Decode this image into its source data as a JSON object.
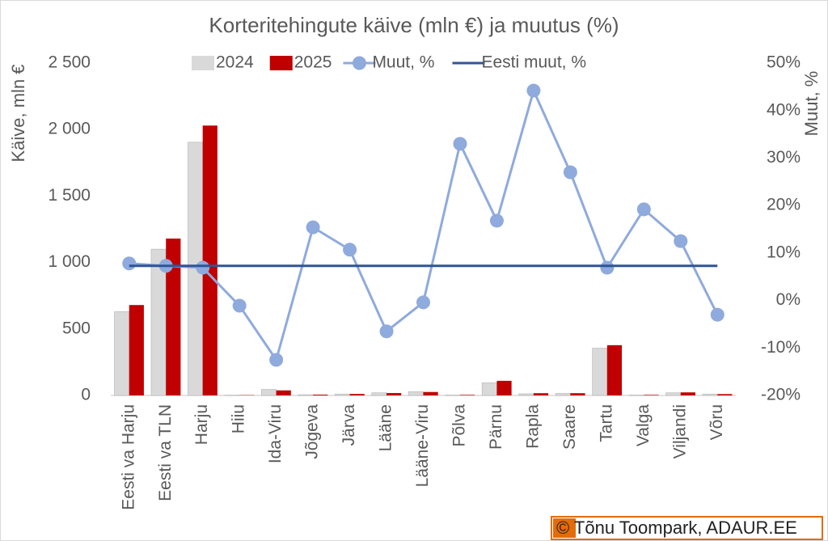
{
  "chart_data": {
    "type": "bar_line",
    "title": "Korteritehingute käive (mln €) ja muutus (%)",
    "ylabel": "Käive, mln €",
    "y2label": "Muut, %",
    "credit": "© Tõnu Toompark, ADAUR.EE",
    "categories": [
      "Eesti va Harju",
      "Eesti va TLN",
      "Harju",
      "Hiiu",
      "Ida-Viru",
      "Jõgeva",
      "Järva",
      "Lääne",
      "Lääne-Viru",
      "Põlva",
      "Pärnu",
      "Rapla",
      "Saare",
      "Tartu",
      "Valga",
      "Viljandi",
      "Võru"
    ],
    "series": [
      {
        "name": "2024",
        "kind": "bar",
        "color": "#d9d9d9",
        "values": [
          630,
          1100,
          1905,
          2,
          45,
          5,
          10,
          20,
          28,
          3,
          95,
          12,
          15,
          355,
          3,
          20,
          10
        ]
      },
      {
        "name": "2025",
        "kind": "bar",
        "color": "#c00000",
        "values": [
          680,
          1180,
          2030,
          2,
          38,
          6,
          11,
          18,
          26,
          4,
          110,
          17,
          17,
          378,
          4,
          23,
          10
        ]
      },
      {
        "name": "Muut, %",
        "kind": "line",
        "markers": true,
        "axis": "y2",
        "color": "#8faadc",
        "values": [
          7.8,
          7.3,
          6.9,
          -1.1,
          -12.5,
          15.4,
          10.7,
          -6.5,
          -0.4,
          33,
          16.8,
          44.2,
          27,
          6.9,
          19.2,
          12.5,
          -3
        ]
      },
      {
        "name": "Eesti muut, %",
        "kind": "line",
        "markers": false,
        "axis": "y2",
        "color": "#2f5597",
        "values": [
          7.3,
          7.3,
          7.3,
          7.3,
          7.3,
          7.3,
          7.3,
          7.3,
          7.3,
          7.3,
          7.3,
          7.3,
          7.3,
          7.3,
          7.3,
          7.3,
          7.3
        ]
      }
    ],
    "ylim": [
      0,
      2500
    ],
    "yticks": [
      0,
      500,
      {
        "value": 1000,
        "label": "1 000"
      },
      {
        "value": 1500,
        "label": "1 500"
      },
      {
        "value": 2000,
        "label": "2 000"
      },
      {
        "value": 2500,
        "label": "2 500"
      }
    ],
    "y2lim": [
      -20,
      50
    ],
    "y2ticks": [
      {
        "value": -20,
        "label": "-20%"
      },
      {
        "value": -10,
        "label": "-10%"
      },
      {
        "value": 0,
        "label": "0%"
      },
      {
        "value": 10,
        "label": "10%"
      },
      {
        "value": 20,
        "label": "20%"
      },
      {
        "value": 30,
        "label": "30%"
      },
      {
        "value": 40,
        "label": "40%"
      },
      {
        "value": 50,
        "label": "50%"
      }
    ],
    "grid": false,
    "legend": "top"
  }
}
